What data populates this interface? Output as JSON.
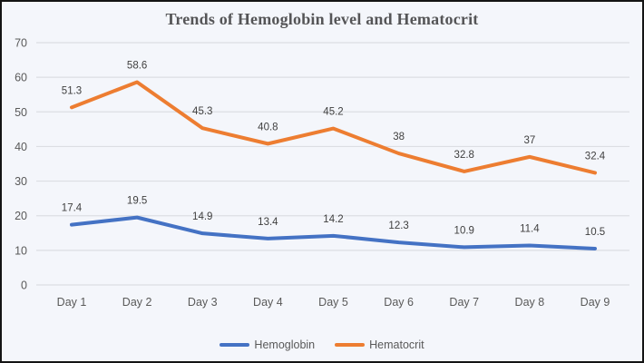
{
  "frame": {
    "background_color": "#f4f6fb",
    "border_color": "#141414",
    "gridline_color": "#dcdee3",
    "axis_label_color": "#595959",
    "data_label_color": "#3f3f3f",
    "title_color": "#555557"
  },
  "chart_data": {
    "type": "line",
    "title": "Trends of Hemoglobin level and Hematocrit",
    "categories": [
      "Day 1",
      "Day 2",
      "Day 3",
      "Day 4",
      "Day 5",
      "Day 6",
      "Day 7",
      "Day 8",
      "Day 9"
    ],
    "series": [
      {
        "name": "Hemoglobin",
        "color": "#4472c4",
        "values": [
          17.4,
          19.5,
          14.9,
          13.4,
          14.2,
          12.3,
          10.9,
          11.4,
          10.5
        ]
      },
      {
        "name": "Hematocrit",
        "color": "#ed7d31",
        "values": [
          51.3,
          58.6,
          45.3,
          40.8,
          45.2,
          38,
          32.8,
          37,
          32.4
        ]
      }
    ],
    "xlabel": "",
    "ylabel": "",
    "ylim": [
      0,
      70
    ],
    "ytick_step": 10,
    "ytick_labels": [
      "0",
      "10",
      "20",
      "30",
      "40",
      "50",
      "60",
      "70"
    ],
    "grid": "horizontal",
    "legend_position": "bottom",
    "data_labels": true
  }
}
